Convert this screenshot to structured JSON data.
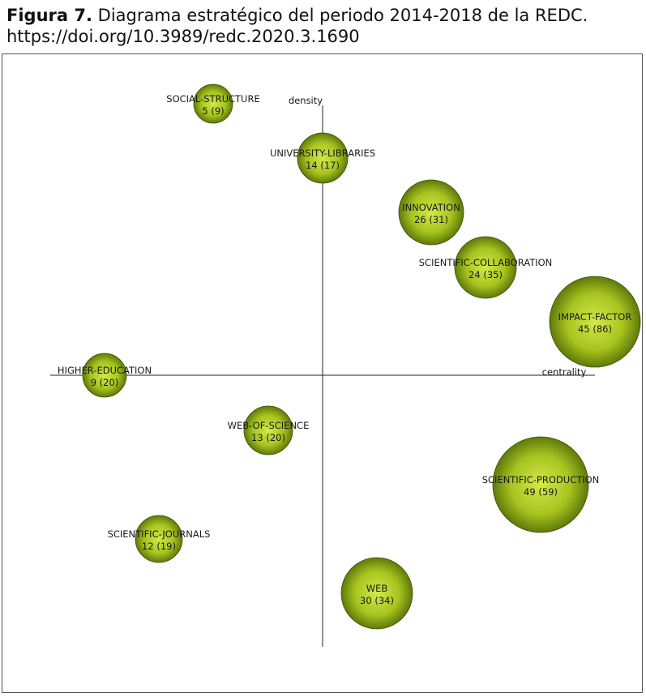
{
  "caption": {
    "bold": "Figura 7.",
    "text": " Diagrama estratégico del periodo 2014-2018 de la REDC.",
    "doi": "https://doi.org/10.3989/redc.2020.3.1690"
  },
  "chart_data": {
    "type": "scatter",
    "title": "",
    "xlabel": "centrality",
    "ylabel": "density",
    "colors": {
      "bubble_light": "#d4e84a",
      "bubble_mid": "#a7c41f",
      "bubble_dark": "#5f7a0a",
      "axis": "#222222"
    },
    "points": [
      {
        "name": "SOCIAL-STRUCTURE",
        "label": "5 (9)",
        "documents": 5,
        "citations": 9
      },
      {
        "name": "UNIVERSITY-LIBRARIES",
        "label": "14 (17)",
        "documents": 14,
        "citations": 17
      },
      {
        "name": "INNOVATION",
        "label": "26 (31)",
        "documents": 26,
        "citations": 31
      },
      {
        "name": "SCIENTIFIC-COLLABORATION",
        "label": "24 (35)",
        "documents": 24,
        "citations": 35
      },
      {
        "name": "IMPACT-FACTOR",
        "label": "45 (86)",
        "documents": 45,
        "citations": 86
      },
      {
        "name": "HIGHER-EDUCATION",
        "label": "9 (20)",
        "documents": 9,
        "citations": 20
      },
      {
        "name": "WEB-OF-SCIENCE",
        "label": "13 (20)",
        "documents": 13,
        "citations": 20
      },
      {
        "name": "SCIENTIFIC-PRODUCTION",
        "label": "49 (59)",
        "documents": 49,
        "citations": 59
      },
      {
        "name": "SCIENTIFIC-JOURNALS",
        "label": "12 (19)",
        "documents": 12,
        "citations": 19
      },
      {
        "name": "WEB",
        "label": "30 (34)",
        "documents": 30,
        "citations": 34
      }
    ]
  }
}
